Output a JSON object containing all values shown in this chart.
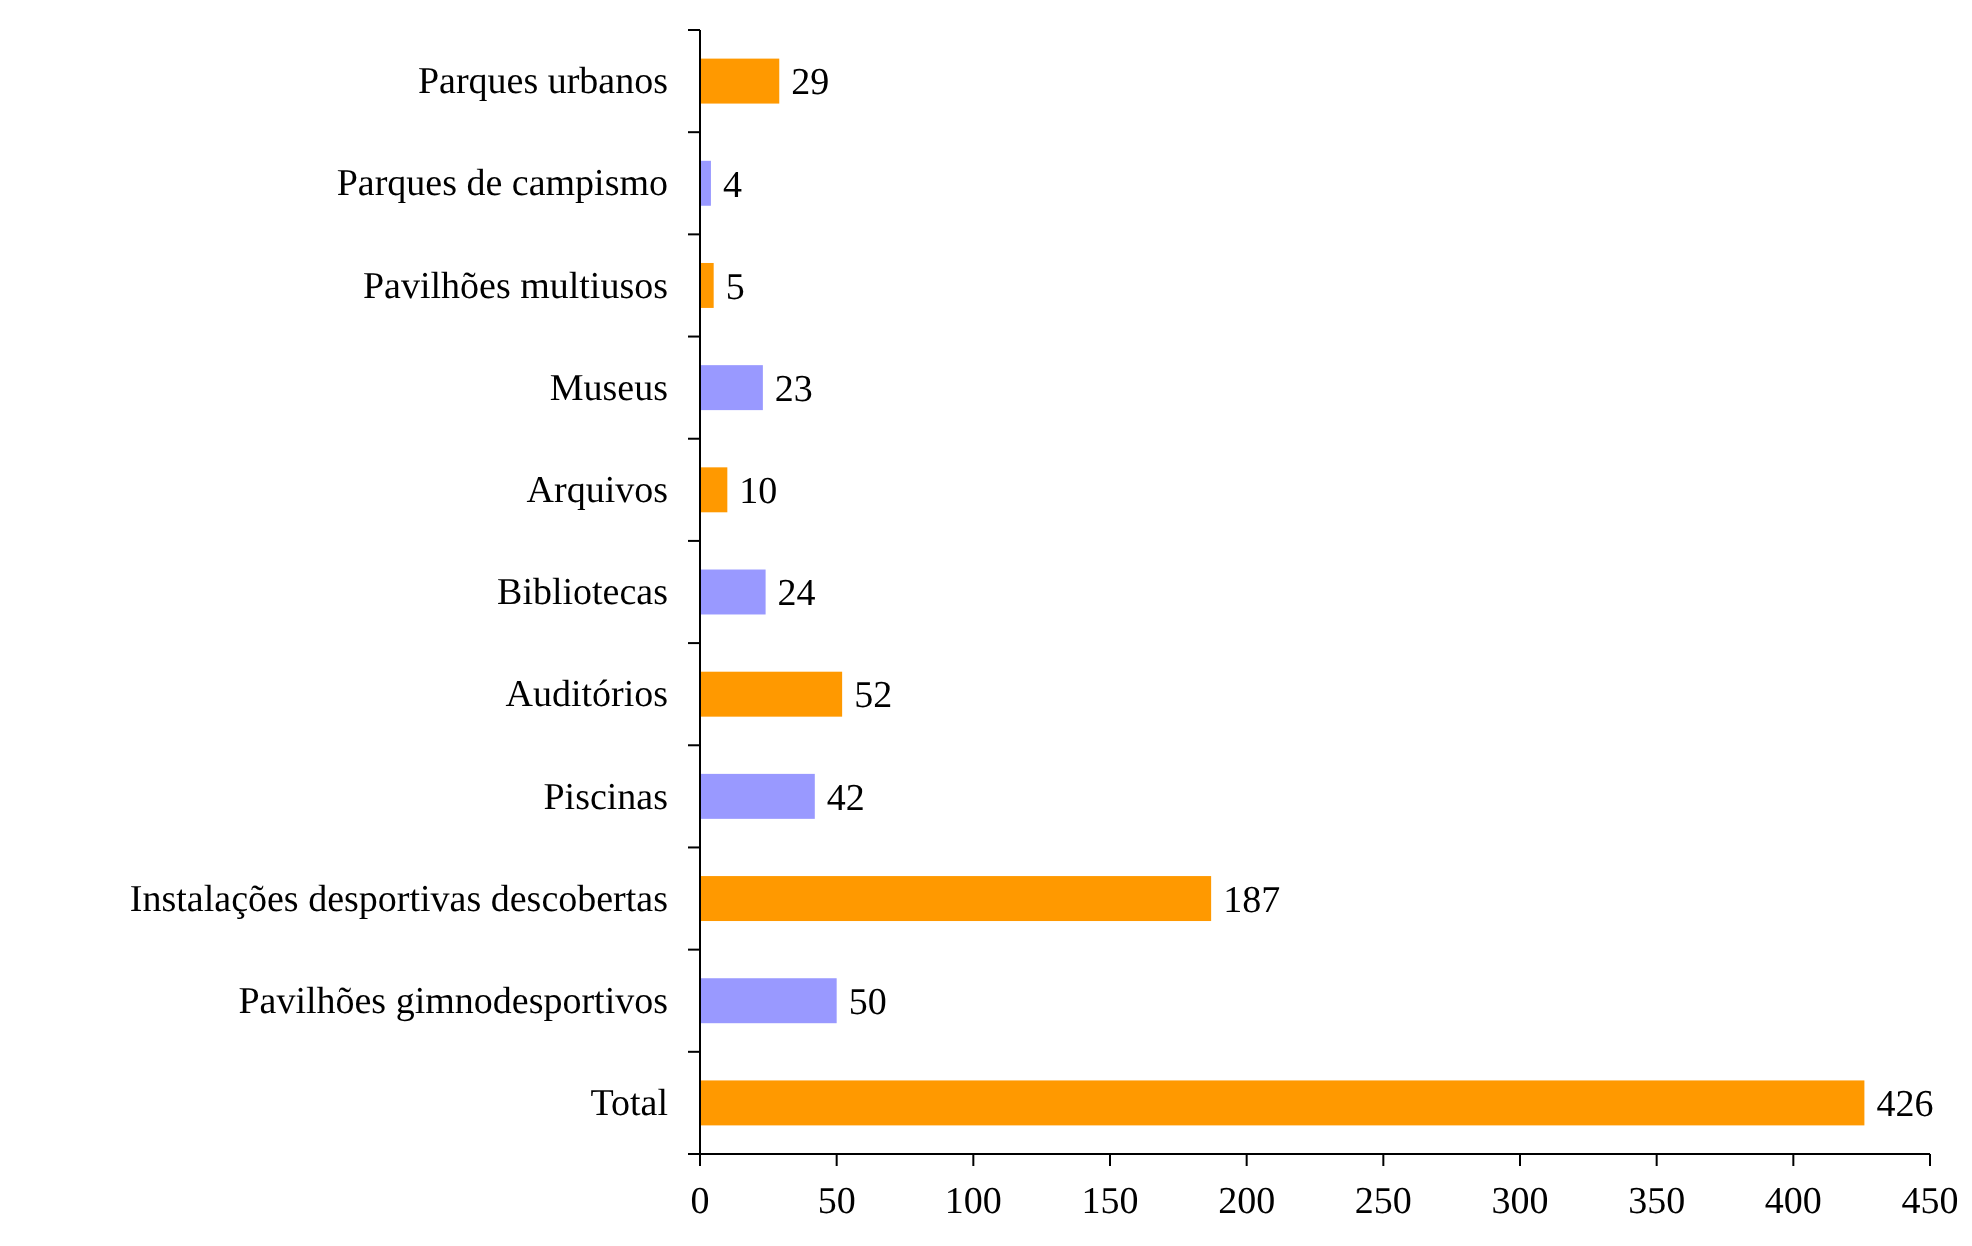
{
  "chart_data": {
    "type": "bar",
    "orientation": "horizontal",
    "categories": [
      "Parques urbanos",
      "Parques de campismo",
      "Pavilhões multiusos",
      "Museus",
      "Arquivos",
      "Bibliotecas",
      "Auditórios",
      "Piscinas",
      "Instalações desportivas descobertas",
      "Pavilhões gimnodesportivos",
      "Total"
    ],
    "values": [
      29,
      4,
      5,
      23,
      10,
      24,
      52,
      42,
      187,
      50,
      426
    ],
    "colors": [
      "#ff9900",
      "#9999ff",
      "#ff9900",
      "#9999ff",
      "#ff9900",
      "#9999ff",
      "#ff9900",
      "#9999ff",
      "#ff9900",
      "#9999ff",
      "#ff9900"
    ],
    "xlim": [
      0,
      450
    ],
    "xticks": [
      0,
      50,
      100,
      150,
      200,
      250,
      300,
      350,
      400,
      450
    ],
    "data_labels": true,
    "grid": false
  }
}
